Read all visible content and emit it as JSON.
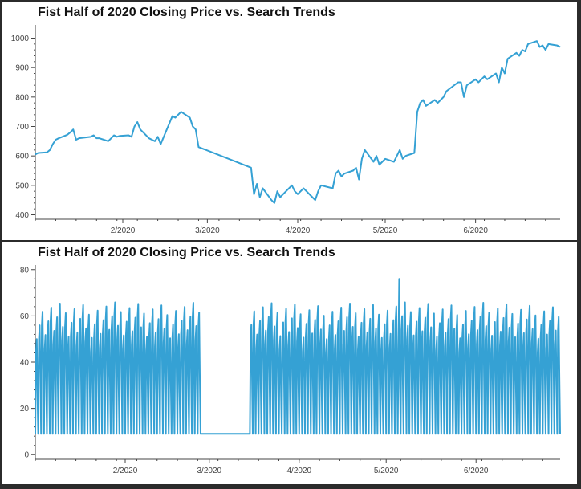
{
  "colors": {
    "line": "#35a1d4",
    "axis": "#444444",
    "background": "#ffffff",
    "frame": "#2b2b2b"
  },
  "chart_data": [
    {
      "type": "line",
      "title": "Fist Half of 2020 Closing Price vs. Search Trends",
      "xlabel": "",
      "ylabel": "",
      "x_ticks": [
        "2/2020",
        "3/2020",
        "4/2020",
        "5/2020",
        "6/2020"
      ],
      "y_ticks": [
        400,
        500,
        600,
        700,
        800,
        900,
        1000
      ],
      "ylim": [
        385,
        1045
      ],
      "xlim": [
        "2020-01-02",
        "2020-06-30"
      ],
      "grid": false,
      "legend": "none",
      "series": [
        {
          "x": [
            "2020-01-02",
            "2020-01-03",
            "2020-01-06",
            "2020-01-07",
            "2020-01-08",
            "2020-01-09",
            "2020-01-10",
            "2020-01-13",
            "2020-01-14",
            "2020-01-15",
            "2020-01-16",
            "2020-01-17",
            "2020-01-21",
            "2020-01-22",
            "2020-01-23",
            "2020-01-24",
            "2020-01-27",
            "2020-01-28",
            "2020-01-29",
            "2020-01-30",
            "2020-01-31",
            "2020-02-03",
            "2020-02-04",
            "2020-02-05",
            "2020-02-06",
            "2020-02-07",
            "2020-02-10",
            "2020-02-11",
            "2020-02-12",
            "2020-02-13",
            "2020-02-14",
            "2020-02-18",
            "2020-02-19",
            "2020-02-20",
            "2020-02-21",
            "2020-02-24",
            "2020-02-25",
            "2020-02-26",
            "2020-02-27",
            "2020-03-16",
            "2020-03-17",
            "2020-03-18",
            "2020-03-19",
            "2020-03-20",
            "2020-03-23",
            "2020-03-24",
            "2020-03-25",
            "2020-03-26",
            "2020-03-27",
            "2020-03-30",
            "2020-03-31",
            "2020-04-01",
            "2020-04-02",
            "2020-04-03",
            "2020-04-06",
            "2020-04-07",
            "2020-04-08",
            "2020-04-09",
            "2020-04-13",
            "2020-04-14",
            "2020-04-15",
            "2020-04-16",
            "2020-04-17",
            "2020-04-20",
            "2020-04-21",
            "2020-04-22",
            "2020-04-23",
            "2020-04-24",
            "2020-04-27",
            "2020-04-28",
            "2020-04-29",
            "2020-04-30",
            "2020-05-01",
            "2020-05-04",
            "2020-05-05",
            "2020-05-06",
            "2020-05-07",
            "2020-05-08",
            "2020-05-11",
            "2020-05-12",
            "2020-05-13",
            "2020-05-14",
            "2020-05-15",
            "2020-05-18",
            "2020-05-19",
            "2020-05-20",
            "2020-05-21",
            "2020-05-22",
            "2020-05-26",
            "2020-05-27",
            "2020-05-28",
            "2020-05-29",
            "2020-06-01",
            "2020-06-02",
            "2020-06-03",
            "2020-06-04",
            "2020-06-05",
            "2020-06-08",
            "2020-06-09",
            "2020-06-10",
            "2020-06-11",
            "2020-06-12",
            "2020-06-15",
            "2020-06-16",
            "2020-06-17",
            "2020-06-18",
            "2020-06-19",
            "2020-06-22",
            "2020-06-23",
            "2020-06-24",
            "2020-06-25",
            "2020-06-26",
            "2020-06-29",
            "2020-06-30"
          ],
          "y": [
            605,
            610,
            612,
            620,
            640,
            655,
            660,
            672,
            680,
            690,
            655,
            660,
            665,
            670,
            660,
            660,
            650,
            660,
            670,
            665,
            668,
            670,
            665,
            700,
            715,
            690,
            660,
            655,
            650,
            665,
            640,
            735,
            730,
            740,
            750,
            730,
            700,
            690,
            630,
            560,
            470,
            505,
            460,
            490,
            450,
            440,
            480,
            460,
            470,
            500,
            480,
            470,
            480,
            490,
            460,
            450,
            480,
            500,
            490,
            540,
            550,
            530,
            540,
            550,
            560,
            520,
            590,
            620,
            580,
            600,
            570,
            580,
            590,
            580,
            600,
            620,
            590,
            600,
            610,
            750,
            780,
            790,
            770,
            790,
            780,
            790,
            800,
            820,
            850,
            850,
            800,
            840,
            860,
            850,
            860,
            870,
            860,
            880,
            850,
            900,
            880,
            930,
            950,
            940,
            960,
            955,
            980,
            990,
            970,
            975,
            960,
            980,
            975,
            970
          ]
        }
      ]
    },
    {
      "type": "line",
      "title": "Fist Half of 2020 Closing Price vs. Search Trends",
      "xlabel": "",
      "ylabel": "",
      "x_ticks": [
        "2/2020",
        "3/2020",
        "4/2020",
        "5/2020",
        "6/2020"
      ],
      "y_ticks": [
        0,
        20,
        40,
        60,
        80
      ],
      "ylim": [
        -2,
        82
      ],
      "xlim": [
        "2020-01-01",
        "2020-06-30"
      ],
      "grid": false,
      "legend": "none",
      "series": [
        {
          "x_start": "2020-01-01T00:00",
          "x_step_hours": 6,
          "gap": [
            "2020-02-27T00:00",
            "2020-03-15T00:00"
          ],
          "y_cycle_low": 9,
          "y_cycle_high_range": [
            50,
            66
          ],
          "peak": {
            "x": "2020-05-05T12:00",
            "y": 76
          }
        }
      ]
    }
  ]
}
